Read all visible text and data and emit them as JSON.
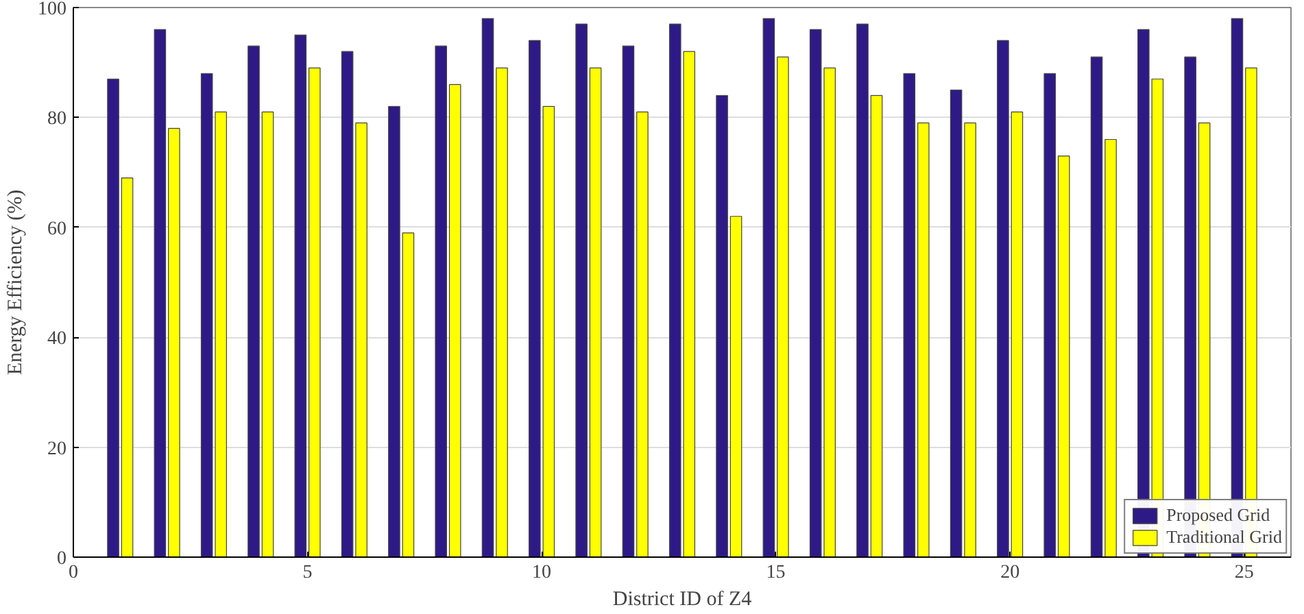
{
  "chart_data": {
    "type": "bar",
    "xlabel": "District ID of Z4",
    "ylabel": "Energy Efficiency (%)",
    "x": [
      1,
      2,
      3,
      4,
      5,
      6,
      7,
      8,
      9,
      10,
      11,
      12,
      13,
      14,
      15,
      16,
      17,
      18,
      19,
      20,
      21,
      22,
      23,
      24,
      25
    ],
    "series": [
      {
        "name": "Proposed Grid",
        "color": "#2e1a87",
        "values": [
          87,
          96,
          88,
          93,
          95,
          92,
          82,
          93,
          98,
          94,
          97,
          93,
          97,
          84,
          98,
          96,
          97,
          88,
          85,
          94,
          88,
          91,
          96,
          91,
          98
        ]
      },
      {
        "name": "Traditional Grid",
        "color": "#ffff00",
        "values": [
          69,
          78,
          81,
          81,
          89,
          79,
          59,
          86,
          89,
          82,
          89,
          81,
          92,
          62,
          91,
          89,
          84,
          79,
          79,
          81,
          73,
          76,
          87,
          79,
          89
        ]
      }
    ],
    "xlim": [
      0,
      26
    ],
    "xticks": [
      0,
      5,
      10,
      15,
      20,
      25
    ],
    "ylim": [
      0,
      100
    ],
    "yticks": [
      0,
      20,
      40,
      60,
      80,
      100
    ],
    "grid": "y",
    "legend": "bottom right"
  }
}
